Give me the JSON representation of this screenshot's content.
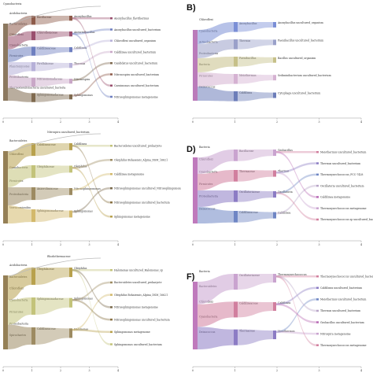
{
  "panels": [
    {
      "letter": "",
      "top_note": "Cyanobacteria",
      "rank1": [
        "Acidobacteria",
        "Bacteroidetes",
        "Chloroflexi",
        "Cyanobacteria",
        "Firmicutes",
        "Planctomycetes",
        "Proteobacteria",
        "Thermodesulfobacteria uncultured_bacteria"
      ],
      "rank2": [
        "Bacillaceae",
        "Chloroflexaceae",
        "Caldilineaceae",
        "Pirellulaceae",
        "Nitrosomonadaceae",
        "Sphingomonadaceae"
      ],
      "rank3": [
        "Anoxybacillus",
        "Aneurinibacillus",
        "Caldilinea",
        "Thermus",
        "Nitrosospira",
        "Sphingomonas"
      ],
      "rank4": [
        "Anoxybacillus_flavithermus",
        "Anoxybacillus uncultured_bacterium",
        "Chloroflexi uncultured_organism",
        "Caldilinea uncultured_bacterium",
        "Candidatus uncultured_bacterium",
        "Nitrosospira uncultured_bacterium",
        "Caenimonas uncultured_bacterium",
        "Nitrosophingomonas metagenome"
      ],
      "axis": [
        "0",
        "1",
        "2",
        "3",
        "4"
      ],
      "colors": [
        "#7f6a4f",
        "#8e5b4a",
        "#9a4f6e",
        "#6e7fc0",
        "#b6b0d8",
        "#c9a7c7"
      ]
    },
    {
      "letter": "B)",
      "top_note": "",
      "rank1": [
        "Chloroflexi",
        "Cyanobacteria",
        "Actinobacteria",
        "Proteobacteria",
        "Bacteria",
        "Firmicutes",
        "Deinococcus"
      ],
      "rank2": [
        "Anoxybacillus",
        "Thermus",
        "Paenibacillus",
        "Meiothermus",
        "Caldilinea"
      ],
      "rank3": [
        "Anoxybacillus uncultured_organism",
        "Paenibacillus uncultured_bacterium",
        "Bacillus uncultured_organism",
        "Sediminibacterium uncultured_bacterium",
        "Cytophaga uncultured_bacterium",
        "Nitrosophingomonas metagenome"
      ],
      "rank4": [],
      "axis": [
        "0",
        "1",
        "2",
        "3",
        "4"
      ],
      "colors": [
        "#b26db3",
        "#7b8fd6",
        "#9aa0c9",
        "#c6c089",
        "#d5b2d2",
        "#6d7eb9"
      ]
    },
    {
      "letter": "",
      "top_note": "Nitrospira uncultured_bacterium",
      "rank1": [
        "Bacteroidetes",
        "Chloroflexi",
        "Cyanobacteria",
        "Firmicutes",
        "Proteobacteria",
        "Verrucomicrobia"
      ],
      "rank2": [
        "Caldilineaceae",
        "Oleiphilaceae",
        "Anaerolineaceae",
        "Sphingomonadaceae"
      ],
      "rank3": [
        "Caldilinea",
        "Oleiphilus",
        "Nitrosophingomonas",
        "Sphingomonas"
      ],
      "rank4": [
        "Bacteroidetes uncultured_prokaryote",
        "Oleiphilus Bohaiensis_Alpina_DSM_16621",
        "Caldilinea metagenome",
        "Nitrosophingomonas uncultured_Nitrosophingomonas_sp",
        "Nitrosophingomonas uncultured_bacterium",
        "Sphingomonas metagenome"
      ],
      "axis": [
        "0",
        "1",
        "2",
        "3",
        "4"
      ],
      "colors": [
        "#8a7244",
        "#b8a14d",
        "#c3c37a",
        "#9d8b62",
        "#d3b96c",
        "#7a6a4c"
      ]
    },
    {
      "letter": "D)",
      "top_note": "",
      "rank1": [
        "Bacteria",
        "Chloroflexi",
        "Cyanobacteria",
        "Firmicutes",
        "Proteobacteria",
        "Deinococcus"
      ],
      "rank2": [
        "Bacillaceae",
        "Thermaceae",
        "Oscillatoriaceae",
        "Caldilineaceae"
      ],
      "rank3": [
        "Geobacillus",
        "Thermus",
        "Oscillatoria",
        "Caldilinea"
      ],
      "rank4": [
        "Meiothermus uncultured_bacterium",
        "Thermus uncultured_bacterium",
        "Thermosynechococcus_PCC-7428",
        "Oscillatoria uncultured_bacterium",
        "Caldilinea metagenome",
        "Thermosynechococcus metagenome",
        "Thermosynechococcus sp uncultured_bacterium"
      ],
      "axis": [
        "0",
        "1",
        "2",
        "3",
        "4"
      ],
      "colors": [
        "#b86bb5",
        "#c9a3cf",
        "#d17f9e",
        "#8c7cc4",
        "#6f86c4",
        "#b9a6c8"
      ]
    },
    {
      "letter": "",
      "top_note": "Rhodothermaceae",
      "rank1": [
        "Acidobacteria",
        "Bacteroidetes",
        "Chloroflexi",
        "Cyanobacteria",
        "Firmicutes",
        "Proteobacteria",
        "Spirochaetes"
      ],
      "rank2": [
        "Oleiphilaceae",
        "Sphingomonadaceae",
        "Caldilineaceae"
      ],
      "rank3": [
        "Oleiphilus",
        "Sphingomonas",
        "Halomonas"
      ],
      "rank4": [
        "Halomonas uncultured_Halomonas_sp",
        "Bacteroidetes uncultured_prokaryote",
        "Oleiphilus Bohaiensis_Alpina_DSM_16621",
        "Nitrosophingomonas metagenome",
        "Nitrosophingomonas uncultured_bacterium",
        "Sphingomonas metagenome",
        "Sphingomonas uncultured_bacterium"
      ],
      "axis": [
        "0",
        "1",
        "2",
        "3",
        "4"
      ],
      "colors": [
        "#8a7244",
        "#b8a14d",
        "#c3c37a",
        "#9d8b62",
        "#d3b96c",
        "#7a6a4c"
      ]
    },
    {
      "letter": "F)",
      "top_note": "",
      "rank1": [
        "Bacteria",
        "Bacteroidetes",
        "Chloroflexi",
        "Cyanobacteria",
        "Deinococcus"
      ],
      "rank2": [
        "Oscillatoriaceae",
        "Caldilineaceae",
        "Thermaceae"
      ],
      "rank3": [
        "Thermosynechococcus",
        "Caldilinea",
        "Meiothermus"
      ],
      "rank4": [
        "Thermosynechococcus uncultured_bacterium",
        "Caldilinea uncultured_bacterium",
        "Meiothermus uncultured_bacterium",
        "Thermus uncultured_bacterium",
        "Geobacillus uncultured_bacterium",
        "Nitrospira metagenome",
        "Thermosynechococcus metagenome"
      ],
      "axis": [
        "0",
        "1",
        "2",
        "3",
        "4"
      ],
      "colors": [
        "#b86bb5",
        "#c9a3cf",
        "#d17f9e",
        "#8c7cc4",
        "#6f86c4",
        "#b9a6c8"
      ]
    }
  ]
}
